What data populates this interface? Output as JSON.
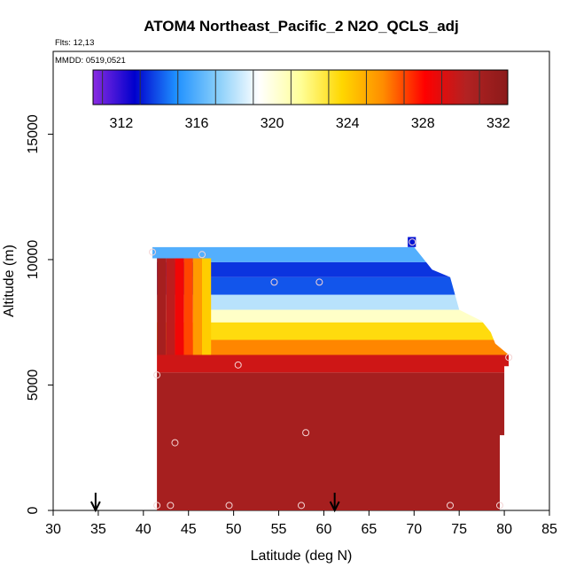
{
  "chart_data": {
    "type": "heatmap",
    "title": "ATOM4 Northeast_Pacific_2 N2O_QCLS_adj",
    "flights_label": "Flts: 12,13",
    "mmdd_label": "MMDD: 0519,0521",
    "xlabel": "Latitude (deg N)",
    "ylabel": "Altitude (m)",
    "xlim": [
      30,
      85
    ],
    "ylim": [
      0,
      18300
    ],
    "x_ticks": [
      30,
      35,
      40,
      45,
      50,
      55,
      60,
      65,
      70,
      75,
      80,
      85
    ],
    "y_ticks": [
      0,
      5000,
      10000,
      15000
    ],
    "colorbar": {
      "range": [
        310.5,
        332.5
      ],
      "ticks": [
        312,
        316,
        320,
        324,
        328,
        332
      ],
      "colors": [
        "#8a2be2",
        "#0000cd",
        "#1e90ff",
        "#87cefa",
        "#ffffff",
        "#ffff99",
        "#ffd700",
        "#ff8c00",
        "#ff0000",
        "#b22222",
        "#8b1a1a"
      ]
    },
    "region": {
      "lat_range": [
        41.5,
        80.5
      ],
      "alt_top_lat": 41,
      "alt_max": 10500,
      "top_edge": [
        {
          "lat": 41,
          "alt": 10500
        },
        {
          "lat": 70,
          "alt": 10500
        },
        {
          "lat": 71,
          "alt": 10050
        },
        {
          "lat": 72,
          "alt": 9600
        },
        {
          "lat": 74,
          "alt": 9300
        },
        {
          "lat": 75,
          "alt": 8000
        },
        {
          "lat": 77.5,
          "alt": 7550
        },
        {
          "lat": 78.5,
          "alt": 7100
        },
        {
          "lat": 79,
          "alt": 6650
        },
        {
          "lat": 80.5,
          "alt": 6200
        },
        {
          "lat": 80.5,
          "alt": 5750
        },
        {
          "lat": 80,
          "alt": 5750
        },
        {
          "lat": 80,
          "alt": 3000
        },
        {
          "lat": 79.5,
          "alt": 3000
        },
        {
          "lat": 79.5,
          "alt": 0
        }
      ],
      "layers": [
        {
          "alt": [
            0,
            5500
          ],
          "value": 331
        },
        {
          "alt": [
            5500,
            6200
          ],
          "value": 329.5
        },
        {
          "alt": [
            6200,
            6800
          ],
          "value": 326
        },
        {
          "alt": [
            6800,
            7500
          ],
          "value": 323.5
        },
        {
          "alt": [
            7500,
            8000
          ],
          "value": 320.5
        },
        {
          "alt": [
            8000,
            8600
          ],
          "value": 318
        },
        {
          "alt": [
            8600,
            9300
          ],
          "value": 314
        },
        {
          "alt": [
            9300,
            9900
          ],
          "value": 313.5
        },
        {
          "alt": [
            9900,
            10500
          ],
          "value": 316
        }
      ]
    },
    "sample_points": [
      {
        "lat": 41,
        "alt": 10300
      },
      {
        "lat": 46.5,
        "alt": 10200
      },
      {
        "lat": 54.5,
        "alt": 9100
      },
      {
        "lat": 59.5,
        "alt": 9100
      },
      {
        "lat": 69.8,
        "alt": 10700
      },
      {
        "lat": 50.5,
        "alt": 5800
      },
      {
        "lat": 41.5,
        "alt": 5400
      },
      {
        "lat": 80.5,
        "alt": 6100
      },
      {
        "lat": 43.5,
        "alt": 2700
      },
      {
        "lat": 58,
        "alt": 3100
      },
      {
        "lat": 41.5,
        "alt": 200
      },
      {
        "lat": 43,
        "alt": 200
      },
      {
        "lat": 49.5,
        "alt": 200
      },
      {
        "lat": 57.5,
        "alt": 200
      },
      {
        "lat": 74,
        "alt": 200
      },
      {
        "lat": 79.5,
        "alt": 200
      }
    ],
    "arrows": [
      {
        "lat": 34.7
      },
      {
        "lat": 61.2
      }
    ]
  }
}
